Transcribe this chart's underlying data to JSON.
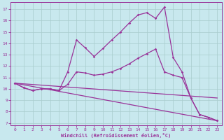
{
  "xlabel": "Windchill (Refroidissement éolien,°C)",
  "bg_color": "#c8e8ee",
  "line_color": "#993399",
  "grid_color": "#a8cccc",
  "xlim": [
    -0.5,
    23.5
  ],
  "ylim": [
    6.8,
    17.6
  ],
  "yticks": [
    7,
    8,
    9,
    10,
    11,
    12,
    13,
    14,
    15,
    16,
    17
  ],
  "xticks": [
    0,
    1,
    2,
    3,
    4,
    5,
    6,
    7,
    8,
    9,
    10,
    11,
    12,
    13,
    14,
    15,
    16,
    17,
    18,
    19,
    20,
    21,
    22,
    23
  ],
  "curve_upper_x": [
    0,
    1,
    2,
    3,
    4,
    5,
    6,
    7,
    8,
    9,
    10,
    11,
    12,
    13,
    14,
    15,
    16,
    17,
    18,
    19,
    20,
    21,
    22,
    23
  ],
  "curve_upper_y": [
    10.5,
    10.1,
    9.85,
    10.0,
    10.0,
    9.85,
    11.5,
    14.3,
    13.6,
    12.85,
    13.55,
    14.3,
    15.0,
    15.8,
    16.5,
    16.7,
    16.2,
    17.2,
    12.75,
    11.5,
    9.2,
    7.75,
    7.5,
    7.2
  ],
  "curve_mid_x": [
    0,
    1,
    2,
    3,
    4,
    5,
    6,
    7,
    8,
    9,
    10,
    11,
    12,
    13,
    14,
    15,
    16,
    17,
    18,
    19,
    20,
    21,
    22,
    23
  ],
  "curve_mid_y": [
    10.5,
    10.1,
    9.85,
    10.0,
    10.0,
    9.85,
    10.4,
    11.5,
    11.4,
    11.2,
    11.3,
    11.5,
    11.8,
    12.2,
    12.7,
    13.1,
    13.5,
    11.5,
    11.2,
    11.0,
    9.2,
    7.75,
    7.5,
    7.2
  ],
  "line_diag1": [
    [
      0,
      23
    ],
    [
      10.5,
      9.2
    ]
  ],
  "line_diag2": [
    [
      0,
      23
    ],
    [
      10.5,
      7.2
    ]
  ]
}
